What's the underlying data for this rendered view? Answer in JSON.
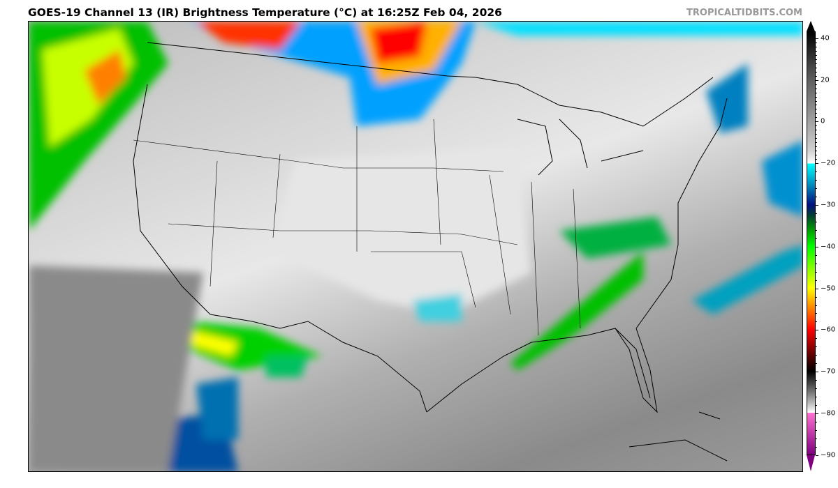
{
  "title": "GOES-19 Channel 13 (IR) Brightness Temperature (°C) at 16:25Z Feb 04, 2026",
  "credit": "TROPICALTIDBITS.COM",
  "colorbar": {
    "units": "°C",
    "ticks": [
      "40",
      "20",
      "0",
      "−20",
      "−30",
      "−40",
      "−50",
      "−60",
      "−70",
      "−80",
      "−90"
    ],
    "tick_values": [
      40,
      20,
      0,
      -20,
      -30,
      -40,
      -50,
      -60,
      -70,
      -80,
      -90
    ],
    "extend": "both",
    "colors": {
      "warm": "#000000",
      "cold_gray": "#ffffff",
      "cyan": "#00ffff",
      "navy": "#001080",
      "green": "#00ff00",
      "yellow": "#ffff00",
      "red": "#ff0000",
      "pink": "#ff70d0",
      "purple": "#800080"
    }
  },
  "map": {
    "region": "Contiguous United States",
    "projection": "satellite IR"
  }
}
